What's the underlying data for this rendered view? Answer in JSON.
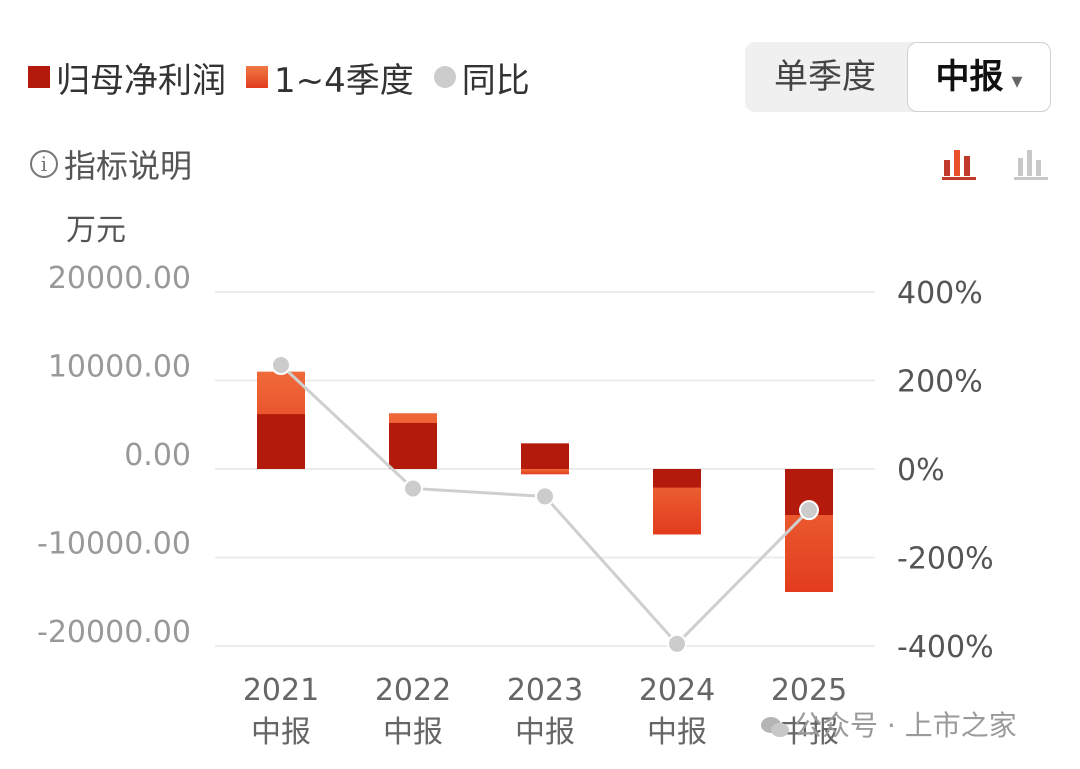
{
  "legend": {
    "net_profit": {
      "label": "归母净利润",
      "color": "#b31a0b"
    },
    "q14": {
      "label": "1~4季度",
      "color": "#e9502a"
    },
    "yoy": {
      "label": "同比",
      "color": "#cccccc"
    }
  },
  "tabs": {
    "single_quarter": "单季度",
    "mid_report": "中报",
    "caret": "▾"
  },
  "info": {
    "icon": "ⓘ",
    "label": "指标说明"
  },
  "view_icons": {
    "active": "bar-chart-active-icon",
    "inactive": "bar-chart-inactive-icon"
  },
  "watermark": "公众号 · 上市之家",
  "chart_data": {
    "type": "bar",
    "unit": "万元",
    "categories": [
      "2021中报",
      "2022中报",
      "2023中报",
      "2024中报",
      "2025中报"
    ],
    "x_tick_lines": [
      [
        "2021",
        "中报"
      ],
      [
        "2022",
        "中报"
      ],
      [
        "2023",
        "中报"
      ],
      [
        "2024",
        "中报"
      ],
      [
        "2025",
        "中报"
      ]
    ],
    "series": [
      {
        "name": "归母净利润",
        "values": [
          6200,
          5200,
          2900,
          -2100,
          -5200
        ],
        "color": "#b31a0b"
      },
      {
        "name": "1~4季度",
        "values": [
          11000,
          6300,
          -600,
          -7400,
          -13900
        ],
        "color": "#e9502a"
      },
      {
        "name": "同比",
        "values": [
          235,
          -44,
          -62,
          -395,
          -93
        ],
        "color": "#cccccc"
      }
    ],
    "ylim": [
      -20000,
      20000
    ],
    "y_ticks": [
      "20000.00",
      "10000.00",
      "0.00",
      "-10000.00",
      "-20000.00"
    ],
    "y2lim": [
      -400,
      400
    ],
    "y2_ticks": [
      "400%",
      "200%",
      "0%",
      "-200%",
      "-400%"
    ],
    "grid": true,
    "legend_position": "top-left"
  }
}
